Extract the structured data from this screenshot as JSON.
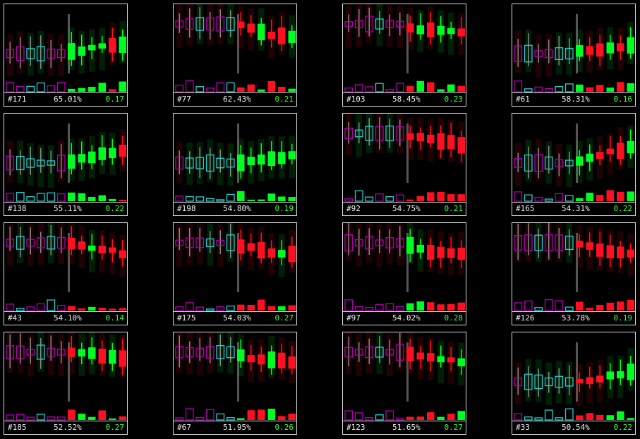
{
  "colors": {
    "up": "#00ff20",
    "down": "#ff1020",
    "pattern_up": "#20d0d0",
    "pattern_down": "#b000b0",
    "border": "#d8d8d8",
    "score": "#39ff39"
  },
  "panels": [
    {
      "id": "#171",
      "pct": "65.01%",
      "score": "0.17",
      "trend": "up"
    },
    {
      "id": "#77",
      "pct": "62.43%",
      "score": "0.21",
      "trend": "down"
    },
    {
      "id": "#103",
      "pct": "58.45%",
      "score": "0.23",
      "trend": "down"
    },
    {
      "id": "#61",
      "pct": "58.31%",
      "score": "0.16",
      "trend": "up"
    },
    {
      "id": "#138",
      "pct": "55.11%",
      "score": "0.22",
      "trend": "up"
    },
    {
      "id": "#198",
      "pct": "54.80%",
      "score": "0.19",
      "trend": "up"
    },
    {
      "id": "#92",
      "pct": "54.75%",
      "score": "0.21",
      "trend": "down"
    },
    {
      "id": "#165",
      "pct": "54.31%",
      "score": "0.22",
      "trend": "up"
    },
    {
      "id": "#43",
      "pct": "54.10%",
      "score": "0.14",
      "trend": "down"
    },
    {
      "id": "#175",
      "pct": "54.03%",
      "score": "0.27",
      "trend": "down"
    },
    {
      "id": "#97",
      "pct": "54.02%",
      "score": "0.28",
      "trend": "down"
    },
    {
      "id": "#126",
      "pct": "53.78%",
      "score": "0.19",
      "trend": "down"
    },
    {
      "id": "#185",
      "pct": "52.52%",
      "score": "0.27",
      "trend": "down"
    },
    {
      "id": "#67",
      "pct": "51.95%",
      "score": "0.26",
      "trend": "down"
    },
    {
      "id": "#123",
      "pct": "51.65%",
      "score": "0.27",
      "trend": "down"
    },
    {
      "id": "#33",
      "pct": "50.54%",
      "score": "0.22",
      "trend": "up"
    }
  ]
}
